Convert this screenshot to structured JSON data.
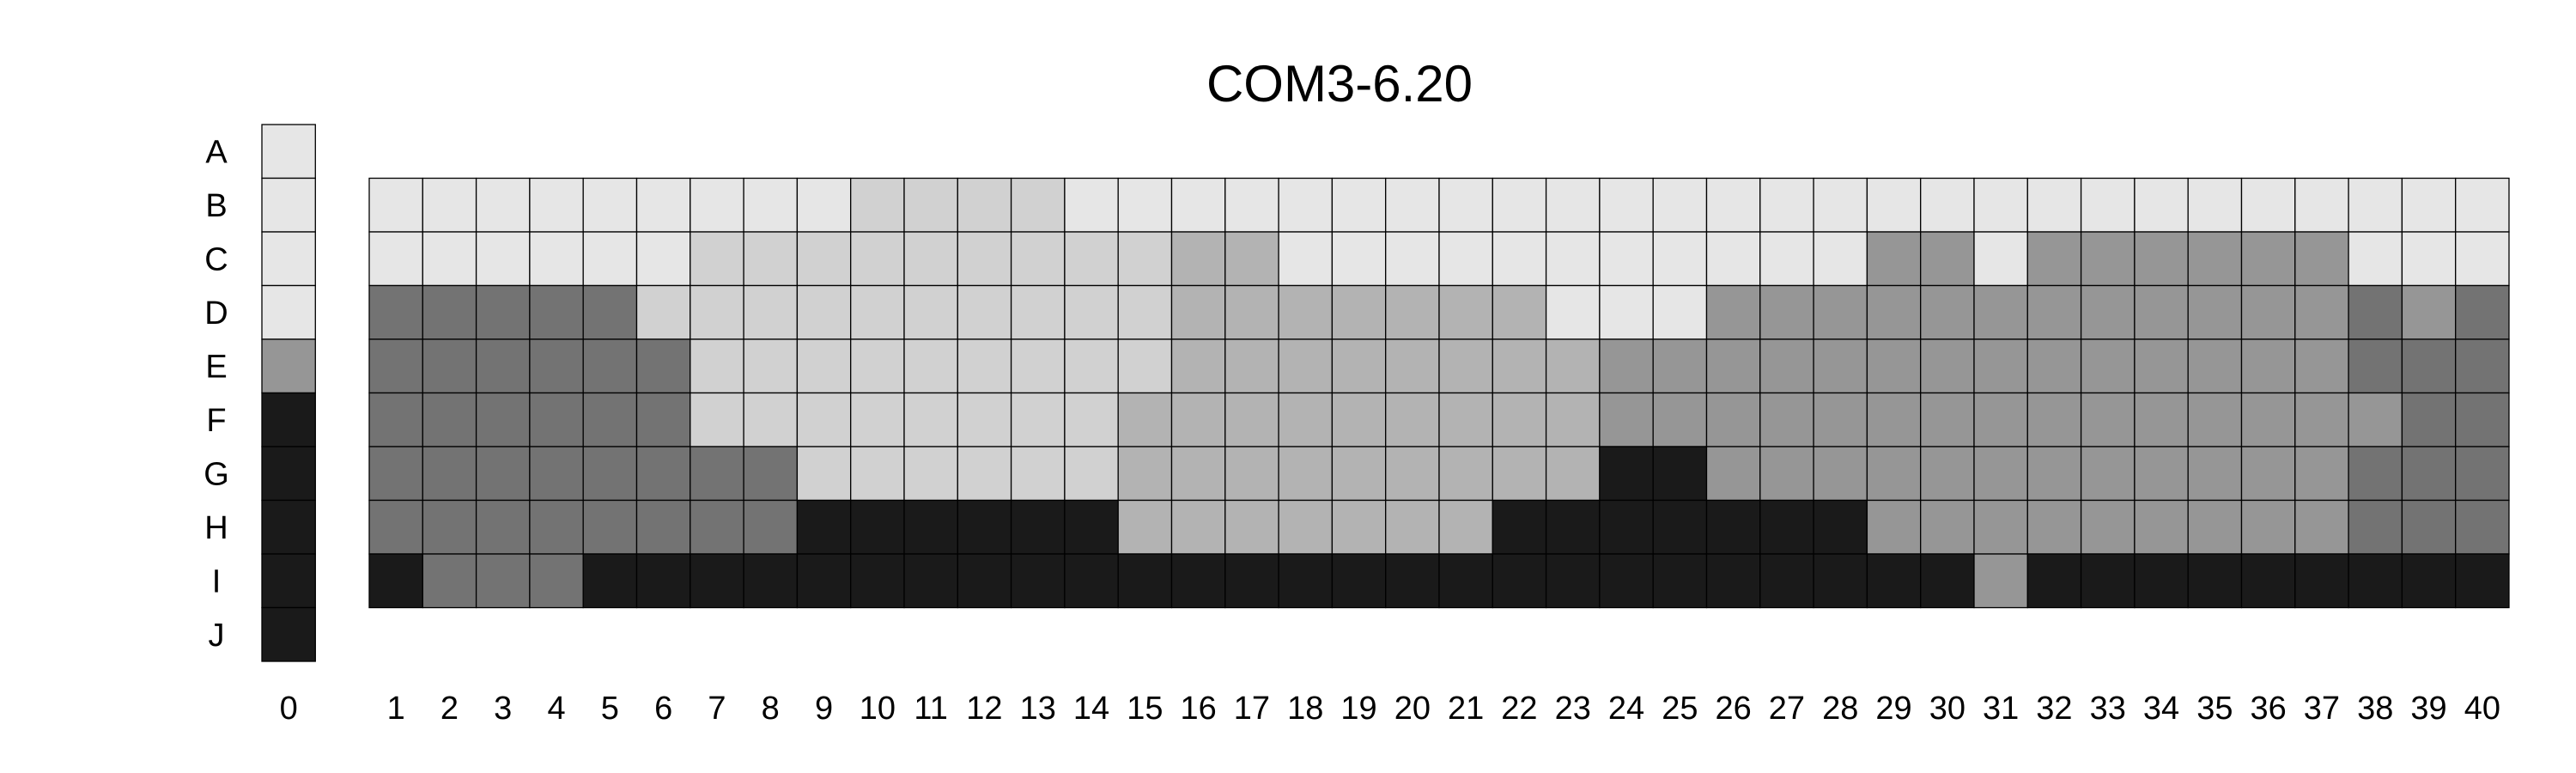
{
  "chart_data": {
    "type": "heatmap",
    "title": "COM3-6.20",
    "rows": [
      "A",
      "B",
      "C",
      "D",
      "E",
      "F",
      "G",
      "H",
      "I",
      "J"
    ],
    "levels": [
      {
        "level": 0,
        "color": "#e6e6e6"
      },
      {
        "level": 1,
        "color": "#d1d1d1"
      },
      {
        "level": 2,
        "color": "#b3b3b3"
      },
      {
        "level": 3,
        "color": "#969696"
      },
      {
        "level": 4,
        "color": "#737373"
      },
      {
        "level": 5,
        "color": "#1a1a1a"
      }
    ],
    "reference_column": {
      "label": "0",
      "cells": [
        0,
        0,
        0,
        0,
        3,
        5,
        5,
        5,
        5,
        5
      ]
    },
    "columns": [
      "1",
      "2",
      "3",
      "4",
      "5",
      "6",
      "7",
      "8",
      "9",
      "10",
      "11",
      "12",
      "13",
      "14",
      "15",
      "16",
      "17",
      "18",
      "19",
      "20",
      "21",
      "22",
      "23",
      "24",
      "25",
      "26",
      "27",
      "28",
      "29",
      "30",
      "31",
      "32",
      "33",
      "34",
      "35",
      "36",
      "37",
      "38",
      "39",
      "40"
    ],
    "column_rows": [
      "B",
      "C",
      "D",
      "E",
      "F",
      "G",
      "H",
      "I"
    ],
    "matrix": [
      [
        0,
        0,
        0,
        0,
        0,
        0,
        0,
        0,
        0,
        1,
        1,
        1,
        1,
        0,
        0,
        0,
        0,
        0,
        0,
        0,
        0,
        0,
        0,
        0,
        0,
        0,
        0,
        0,
        0,
        0,
        0,
        0,
        0,
        0,
        0,
        0,
        0,
        0,
        0,
        0
      ],
      [
        0,
        0,
        0,
        0,
        0,
        0,
        1,
        1,
        1,
        1,
        1,
        1,
        1,
        1,
        1,
        2,
        2,
        0,
        0,
        0,
        0,
        0,
        0,
        0,
        0,
        0,
        0,
        0,
        3,
        3,
        0,
        3,
        3,
        3,
        3,
        3,
        3,
        0,
        0,
        0
      ],
      [
        4,
        4,
        4,
        4,
        4,
        1,
        1,
        1,
        1,
        1,
        1,
        1,
        1,
        1,
        1,
        2,
        2,
        2,
        2,
        2,
        2,
        2,
        0,
        0,
        0,
        3,
        3,
        3,
        3,
        3,
        3,
        3,
        3,
        3,
        3,
        3,
        3,
        4,
        3,
        4
      ],
      [
        4,
        4,
        4,
        4,
        4,
        4,
        1,
        1,
        1,
        1,
        1,
        1,
        1,
        1,
        1,
        2,
        2,
        2,
        2,
        2,
        2,
        2,
        2,
        3,
        3,
        3,
        3,
        3,
        3,
        3,
        3,
        3,
        3,
        3,
        3,
        3,
        3,
        4,
        4,
        4
      ],
      [
        4,
        4,
        4,
        4,
        4,
        4,
        1,
        1,
        1,
        1,
        1,
        1,
        1,
        1,
        2,
        2,
        2,
        2,
        2,
        2,
        2,
        2,
        2,
        3,
        3,
        3,
        3,
        3,
        3,
        3,
        3,
        3,
        3,
        3,
        3,
        3,
        3,
        3,
        4,
        4
      ],
      [
        4,
        4,
        4,
        4,
        4,
        4,
        4,
        4,
        1,
        1,
        1,
        1,
        1,
        1,
        2,
        2,
        2,
        2,
        2,
        2,
        2,
        2,
        2,
        5,
        5,
        3,
        3,
        3,
        3,
        3,
        3,
        3,
        3,
        3,
        3,
        3,
        3,
        4,
        4,
        4
      ],
      [
        4,
        4,
        4,
        4,
        4,
        4,
        4,
        4,
        5,
        5,
        5,
        5,
        5,
        5,
        2,
        2,
        2,
        2,
        2,
        2,
        2,
        5,
        5,
        5,
        5,
        5,
        5,
        5,
        3,
        3,
        3,
        3,
        3,
        3,
        3,
        3,
        3,
        4,
        4,
        4
      ],
      [
        5,
        4,
        4,
        4,
        5,
        5,
        5,
        5,
        5,
        5,
        5,
        5,
        5,
        5,
        5,
        5,
        5,
        5,
        5,
        5,
        5,
        5,
        5,
        5,
        5,
        5,
        5,
        5,
        5,
        5,
        3,
        5,
        5,
        5,
        5,
        5,
        5,
        5,
        5,
        5
      ]
    ]
  }
}
